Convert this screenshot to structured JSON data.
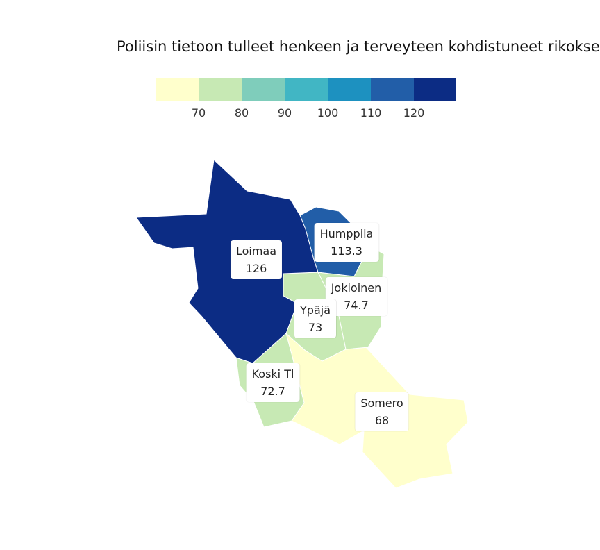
{
  "title": "Poliisin tietoon tulleet henkeen ja terveyteen kohdistuneet rikokset",
  "legend": {
    "colors": [
      "#ffffcc",
      "#c7e9b4",
      "#7fcdbb",
      "#41b6c4",
      "#1d91c0",
      "#225ea8",
      "#0c2c84"
    ],
    "ticks": [
      "70",
      "80",
      "90",
      "100",
      "110",
      "120"
    ]
  },
  "regions": [
    {
      "name": "Loimaa",
      "value": "126",
      "color": "#0c2c84"
    },
    {
      "name": "Humppila",
      "value": "113.3",
      "color": "#225ea8"
    },
    {
      "name": "Jokioinen",
      "value": "74.7",
      "color": "#c7e9b4"
    },
    {
      "name": "Ypäjä",
      "value": "73",
      "color": "#c7e9b4"
    },
    {
      "name": "Koski Tl",
      "value": "72.7",
      "color": "#c7e9b4"
    },
    {
      "name": "Somero",
      "value": "68",
      "color": "#ffffcc"
    }
  ]
}
